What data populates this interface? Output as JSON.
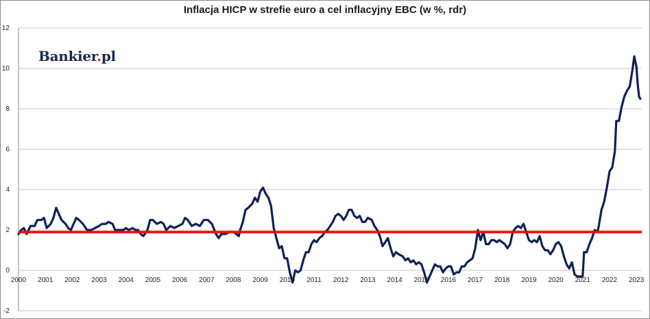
{
  "chart_data": {
    "type": "line",
    "title": "Inflacja HICP w strefie euro a cel inflacyjny EBC (w %, rdr)",
    "xlabel": "",
    "ylabel": "",
    "ylim": [
      -2,
      12
    ],
    "xlim": [
      2000,
      2023.2
    ],
    "grid": "horizontal",
    "y_ticks": [
      "-2",
      "0",
      "2",
      "4",
      "6",
      "8",
      "10",
      "12"
    ],
    "x_ticks": [
      "2000",
      "2001",
      "2002",
      "2003",
      "2004",
      "2005",
      "2006",
      "2007",
      "2008",
      "2009",
      "2010",
      "2011",
      "2012",
      "2013",
      "2014",
      "2015",
      "2016",
      "2017",
      "2018",
      "2019",
      "2020",
      "2021",
      "2022",
      "2023"
    ],
    "target": {
      "value": 1.9,
      "color": "#ff0000"
    },
    "series": [
      {
        "color": "#0d2057",
        "points": [
          [
            2000.0,
            1.8
          ],
          [
            2000.1,
            2.0
          ],
          [
            2000.2,
            2.1
          ],
          [
            2000.3,
            1.8
          ],
          [
            2000.45,
            2.2
          ],
          [
            2000.6,
            2.2
          ],
          [
            2000.7,
            2.5
          ],
          [
            2000.85,
            2.5
          ],
          [
            2000.95,
            2.6
          ],
          [
            2001.05,
            2.1
          ],
          [
            2001.2,
            2.3
          ],
          [
            2001.3,
            2.6
          ],
          [
            2001.4,
            3.1
          ],
          [
            2001.5,
            2.8
          ],
          [
            2001.6,
            2.5
          ],
          [
            2001.75,
            2.3
          ],
          [
            2001.85,
            2.1
          ],
          [
            2001.95,
            2.0
          ],
          [
            2002.05,
            2.3
          ],
          [
            2002.15,
            2.6
          ],
          [
            2002.25,
            2.5
          ],
          [
            2002.4,
            2.3
          ],
          [
            2002.55,
            2.0
          ],
          [
            2002.7,
            2.0
          ],
          [
            2002.85,
            2.1
          ],
          [
            2003.0,
            2.2
          ],
          [
            2003.1,
            2.3
          ],
          [
            2003.25,
            2.3
          ],
          [
            2003.35,
            2.4
          ],
          [
            2003.5,
            2.3
          ],
          [
            2003.6,
            2.0
          ],
          [
            2003.75,
            2.0
          ],
          [
            2003.9,
            2.0
          ],
          [
            2004.0,
            2.1
          ],
          [
            2004.1,
            2.0
          ],
          [
            2004.25,
            2.1
          ],
          [
            2004.35,
            2.0
          ],
          [
            2004.45,
            2.0
          ],
          [
            2004.55,
            1.8
          ],
          [
            2004.65,
            1.7
          ],
          [
            2004.8,
            2.0
          ],
          [
            2004.9,
            2.5
          ],
          [
            2005.0,
            2.5
          ],
          [
            2005.15,
            2.3
          ],
          [
            2005.3,
            2.4
          ],
          [
            2005.4,
            2.3
          ],
          [
            2005.5,
            2.0
          ],
          [
            2005.65,
            2.2
          ],
          [
            2005.8,
            2.1
          ],
          [
            2005.95,
            2.2
          ],
          [
            2006.1,
            2.3
          ],
          [
            2006.2,
            2.6
          ],
          [
            2006.3,
            2.5
          ],
          [
            2006.45,
            2.2
          ],
          [
            2006.6,
            2.3
          ],
          [
            2006.75,
            2.2
          ],
          [
            2006.9,
            2.5
          ],
          [
            2007.05,
            2.5
          ],
          [
            2007.2,
            2.3
          ],
          [
            2007.35,
            1.8
          ],
          [
            2007.45,
            1.6
          ],
          [
            2007.55,
            1.8
          ],
          [
            2007.7,
            1.8
          ],
          [
            2007.85,
            1.9
          ],
          [
            2008.0,
            1.9
          ],
          [
            2008.1,
            1.8
          ],
          [
            2008.2,
            1.7
          ],
          [
            2008.25,
            2.0
          ],
          [
            2008.35,
            2.4
          ],
          [
            2008.45,
            3.0
          ],
          [
            2008.55,
            3.1
          ],
          [
            2008.7,
            3.3
          ],
          [
            2008.8,
            3.6
          ],
          [
            2008.9,
            3.4
          ],
          [
            2009.0,
            3.9
          ],
          [
            2009.1,
            4.1
          ],
          [
            2009.2,
            3.8
          ],
          [
            2009.3,
            3.6
          ],
          [
            2009.4,
            3.2
          ],
          [
            2009.5,
            2.1
          ],
          [
            2009.6,
            1.6
          ],
          [
            2009.7,
            1.1
          ],
          [
            2009.8,
            1.2
          ],
          [
            2009.9,
            0.6
          ],
          [
            2010.0,
            0.6
          ],
          [
            2010.1,
            -0.1
          ],
          [
            2010.2,
            -0.6
          ],
          [
            2010.3,
            0.0
          ],
          [
            2010.4,
            -0.1
          ],
          [
            2010.5,
            0.0
          ],
          [
            2010.6,
            0.5
          ],
          [
            2010.7,
            0.9
          ],
          [
            2010.8,
            0.9
          ],
          [
            2010.9,
            1.3
          ],
          [
            2011.0,
            1.5
          ],
          [
            2011.1,
            1.4
          ],
          [
            2011.2,
            1.6
          ],
          [
            2011.3,
            1.7
          ],
          [
            2011.4,
            1.9
          ],
          [
            2011.5,
            2.0
          ],
          [
            2011.6,
            2.2
          ],
          [
            2011.7,
            2.4
          ],
          [
            2011.8,
            2.7
          ],
          [
            2011.9,
            2.8
          ],
          [
            2012.0,
            2.7
          ],
          [
            2012.1,
            2.5
          ],
          [
            2012.2,
            2.7
          ],
          [
            2012.3,
            3.0
          ],
          [
            2012.4,
            3.0
          ],
          [
            2012.5,
            2.7
          ],
          [
            2012.6,
            2.6
          ],
          [
            2012.7,
            2.7
          ],
          [
            2012.8,
            2.4
          ],
          [
            2012.9,
            2.4
          ],
          [
            2013.0,
            2.6
          ],
          [
            2013.15,
            2.5
          ],
          [
            2013.25,
            2.2
          ],
          [
            2013.35,
            2.0
          ],
          [
            2013.45,
            1.7
          ],
          [
            2013.55,
            1.2
          ],
          [
            2013.65,
            1.4
          ],
          [
            2013.75,
            1.6
          ],
          [
            2013.85,
            1.1
          ],
          [
            2013.95,
            0.7
          ],
          [
            2014.05,
            0.9
          ],
          [
            2014.15,
            0.8
          ],
          [
            2014.3,
            0.7
          ],
          [
            2014.4,
            0.5
          ],
          [
            2014.5,
            0.6
          ],
          [
            2014.6,
            0.4
          ],
          [
            2014.7,
            0.5
          ],
          [
            2014.8,
            0.3
          ],
          [
            2014.9,
            0.4
          ],
          [
            2015.0,
            0.3
          ],
          [
            2015.1,
            -0.1
          ],
          [
            2015.2,
            -0.6
          ],
          [
            2015.3,
            -0.3
          ],
          [
            2015.4,
            0.0
          ],
          [
            2015.5,
            0.3
          ],
          [
            2015.6,
            0.2
          ],
          [
            2015.7,
            0.2
          ],
          [
            2015.8,
            -0.1
          ],
          [
            2015.9,
            0.1
          ],
          [
            2016.0,
            0.2
          ],
          [
            2016.1,
            0.2
          ],
          [
            2016.2,
            -0.2
          ],
          [
            2016.3,
            -0.1
          ],
          [
            2016.4,
            -0.1
          ],
          [
            2016.5,
            0.2
          ],
          [
            2016.6,
            0.2
          ],
          [
            2016.7,
            0.4
          ],
          [
            2016.8,
            0.5
          ],
          [
            2016.9,
            0.6
          ],
          [
            2017.0,
            1.1
          ],
          [
            2017.1,
            2.0
          ],
          [
            2017.2,
            1.5
          ],
          [
            2017.3,
            1.9
          ],
          [
            2017.4,
            1.3
          ],
          [
            2017.5,
            1.3
          ],
          [
            2017.6,
            1.5
          ],
          [
            2017.7,
            1.5
          ],
          [
            2017.8,
            1.4
          ],
          [
            2017.9,
            1.5
          ],
          [
            2018.0,
            1.4
          ],
          [
            2018.1,
            1.3
          ],
          [
            2018.2,
            1.1
          ],
          [
            2018.3,
            1.3
          ],
          [
            2018.4,
            1.9
          ],
          [
            2018.5,
            2.1
          ],
          [
            2018.6,
            2.2
          ],
          [
            2018.7,
            2.1
          ],
          [
            2018.8,
            2.3
          ],
          [
            2018.9,
            1.9
          ],
          [
            2019.0,
            1.5
          ],
          [
            2019.1,
            1.4
          ],
          [
            2019.2,
            1.5
          ],
          [
            2019.3,
            1.4
          ],
          [
            2019.4,
            1.7
          ],
          [
            2019.5,
            1.2
          ],
          [
            2019.6,
            1.0
          ],
          [
            2019.7,
            1.0
          ],
          [
            2019.8,
            0.8
          ],
          [
            2019.9,
            1.0
          ],
          [
            2020.0,
            1.3
          ],
          [
            2020.1,
            1.4
          ],
          [
            2020.2,
            1.2
          ],
          [
            2020.3,
            0.7
          ],
          [
            2020.4,
            0.3
          ],
          [
            2020.5,
            0.1
          ],
          [
            2020.6,
            0.4
          ],
          [
            2020.7,
            -0.2
          ],
          [
            2020.8,
            -0.3
          ],
          [
            2020.9,
            -0.3
          ],
          [
            2021.0,
            -0.3
          ],
          [
            2021.05,
            0.9
          ],
          [
            2021.15,
            0.9
          ],
          [
            2021.25,
            1.3
          ],
          [
            2021.35,
            1.6
          ],
          [
            2021.45,
            2.0
          ],
          [
            2021.55,
            1.9
          ],
          [
            2021.6,
            2.2
          ],
          [
            2021.7,
            3.0
          ],
          [
            2021.8,
            3.4
          ],
          [
            2021.9,
            4.1
          ],
          [
            2022.0,
            4.9
          ],
          [
            2022.1,
            5.1
          ],
          [
            2022.2,
            5.9
          ],
          [
            2022.25,
            7.4
          ],
          [
            2022.35,
            7.4
          ],
          [
            2022.45,
            8.1
          ],
          [
            2022.55,
            8.6
          ],
          [
            2022.65,
            8.9
          ],
          [
            2022.75,
            9.1
          ],
          [
            2022.85,
            9.9
          ],
          [
            2022.92,
            10.6
          ],
          [
            2023.0,
            10.1
          ],
          [
            2023.05,
            9.2
          ],
          [
            2023.1,
            8.6
          ],
          [
            2023.15,
            8.5
          ]
        ]
      }
    ]
  }
}
